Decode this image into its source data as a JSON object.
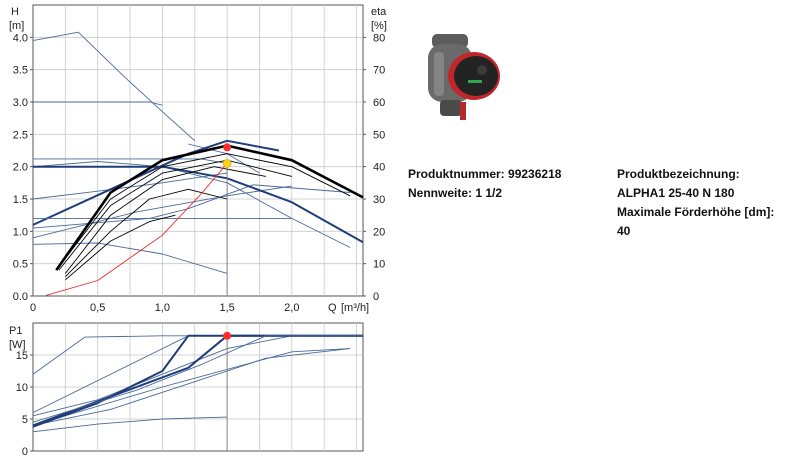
{
  "product": {
    "produktnummer_label": "Produktnummer:",
    "produktnummer": "99236218",
    "nennweite_label": "Nennweite:",
    "nennweite": "1 1/2",
    "bezeichnung_label": "Produktbezeichnung:",
    "bezeichnung": "ALPHA1 25-40 N 180",
    "foerderhoehe_label": "Maximale Förderhöhe [dm]:",
    "foerderhoehe": "40",
    "image": "circulator-pump-photo"
  },
  "colors": {
    "grid": "#c8c8c8",
    "frame": "#555555",
    "curve_thin": "#4a6a9a",
    "curve_bold": "#1f3d78",
    "curve_black": "#000000",
    "system_curve": "#e8312f",
    "op_point_red": "#ff2a2a",
    "op_point_yellow": "#ffd21a",
    "pump_body": "#555555",
    "pump_accent": "#c0262a"
  },
  "chart_data": [
    {
      "type": "line",
      "title": "",
      "ylabel": "H\n[m]",
      "y2label": "eta\n[%]",
      "xlabel": "Q [m³/h]",
      "xlim": [
        0,
        2.55
      ],
      "ylim": [
        0,
        4.5
      ],
      "y2lim": [
        0,
        90
      ],
      "x_ticks": [
        "0",
        "0,5",
        "1,0",
        "1,5",
        "2,0"
      ],
      "x_tick_values": [
        0,
        0.5,
        1.0,
        1.5,
        2.0
      ],
      "y_ticks": [
        "0.0",
        "0.5",
        "1.0",
        "1.5",
        "2.0",
        "2.5",
        "3.0",
        "3.5",
        "4.0"
      ],
      "y_tick_values": [
        0,
        0.5,
        1.0,
        1.5,
        2.0,
        2.5,
        3.0,
        3.5,
        4.0
      ],
      "y2_ticks": [
        "0",
        "10",
        "20",
        "30",
        "40",
        "50",
        "60",
        "70",
        "80"
      ],
      "y2_tick_values": [
        0,
        10,
        20,
        30,
        40,
        50,
        60,
        70,
        80
      ],
      "x_unit": "[m³/h]",
      "grid": true,
      "operating_point": {
        "x": 1.5,
        "y": 2.05,
        "eta": 46
      },
      "series": [
        {
          "role": "thin",
          "axis": "H",
          "x": [
            0,
            0.35,
            0.7,
            1.0,
            1.25
          ],
          "y": [
            3.95,
            4.08,
            3.4,
            2.85,
            2.4
          ]
        },
        {
          "role": "thin",
          "axis": "H",
          "x": [
            0,
            0.9,
            1.0
          ],
          "y": [
            3.0,
            3.0,
            2.95
          ]
        },
        {
          "role": "thin",
          "axis": "H",
          "x": [
            0,
            1.3,
            1.5
          ],
          "y": [
            2.12,
            2.12,
            2.05
          ]
        },
        {
          "role": "thin",
          "axis": "H",
          "x": [
            0,
            0.5,
            1.0,
            1.5,
            2.0,
            2.45
          ],
          "y": [
            2.0,
            2.08,
            2.0,
            1.75,
            1.2,
            0.75
          ]
        },
        {
          "role": "thin",
          "axis": "H",
          "x": [
            0,
            0.5,
            1.0,
            1.5
          ],
          "y": [
            0.8,
            0.82,
            0.65,
            0.35
          ]
        },
        {
          "role": "thin",
          "axis": "H",
          "x": [
            0,
            0.9,
            1.2,
            1.7,
            2.45
          ],
          "y": [
            1.05,
            1.2,
            1.35,
            1.72,
            1.6
          ]
        },
        {
          "role": "thin",
          "axis": "H",
          "x": [
            0,
            0.5,
            1.0,
            1.5
          ],
          "y": [
            1.5,
            1.62,
            1.75,
            1.9
          ]
        },
        {
          "role": "thin",
          "axis": "H",
          "x": [
            0,
            0.8,
            1.5,
            2.0
          ],
          "y": [
            0.9,
            1.3,
            1.55,
            1.7
          ]
        },
        {
          "role": "thin",
          "axis": "H",
          "x": [
            1.2,
            1.5,
            1.75
          ],
          "y": [
            2.35,
            2.2,
            1.9
          ]
        },
        {
          "role": "bold",
          "axis": "H",
          "x": [
            0,
            1.0,
            1.5,
            2.0,
            2.55
          ],
          "y": [
            2.0,
            2.0,
            1.82,
            1.45,
            0.83
          ]
        },
        {
          "role": "bold",
          "axis": "H",
          "x": [
            0,
            0.6,
            1.2,
            1.5,
            1.9
          ],
          "y": [
            1.1,
            1.65,
            2.2,
            2.4,
            2.25
          ]
        },
        {
          "role": "thin",
          "axis": "H",
          "x": [
            0,
            0.9,
            2.0
          ],
          "y": [
            1.2,
            1.2,
            1.2
          ]
        },
        {
          "role": "black_bold",
          "axis": "eta",
          "x": [
            0.18,
            0.6,
            1.0,
            1.5,
            2.0,
            2.55
          ],
          "y": [
            8,
            32,
            42,
            46.5,
            42,
            30.5
          ]
        },
        {
          "role": "black_thin",
          "axis": "eta",
          "x": [
            0.2,
            0.6,
            1.0,
            1.5,
            2.0,
            2.45
          ],
          "y": [
            9,
            30,
            40,
            44,
            40,
            31
          ]
        },
        {
          "role": "black_thin",
          "axis": "eta",
          "x": [
            0.2,
            0.6,
            1.0,
            1.5,
            2.0
          ],
          "y": [
            8,
            28,
            38,
            42,
            37
          ]
        },
        {
          "role": "black_thin",
          "axis": "eta",
          "x": [
            0.25,
            0.6,
            1.0,
            1.4,
            1.8
          ],
          "y": [
            7,
            25,
            36,
            40,
            37
          ]
        },
        {
          "role": "black_thin",
          "axis": "eta",
          "x": [
            0.25,
            0.6,
            0.9,
            1.2,
            1.5
          ],
          "y": [
            6,
            20,
            30,
            33,
            30
          ]
        },
        {
          "role": "black_thin",
          "axis": "eta",
          "x": [
            0.25,
            0.6,
            0.9,
            1.1
          ],
          "y": [
            5,
            17,
            23,
            25
          ]
        },
        {
          "role": "system",
          "axis": "H",
          "x": [
            0.1,
            0.5,
            1.0,
            1.3,
            1.5
          ],
          "y": [
            0.01,
            0.24,
            0.94,
            1.58,
            2.05
          ]
        }
      ]
    },
    {
      "type": "line",
      "title": "",
      "ylabel": "P1\n[W]",
      "xlim": [
        0,
        2.55
      ],
      "ylim": [
        0,
        20
      ],
      "y_ticks": [
        "0",
        "5",
        "10",
        "15"
      ],
      "y_tick_values": [
        0,
        5,
        10,
        15
      ],
      "grid": true,
      "operating_point": {
        "x": 1.5,
        "y": 18
      },
      "series": [
        {
          "role": "thin",
          "x": [
            0,
            0.4,
            1.0,
            1.5,
            2.55
          ],
          "y": [
            12,
            17.8,
            18,
            18,
            18
          ]
        },
        {
          "role": "thin",
          "x": [
            0,
            0.5,
            0.9,
            1.2
          ],
          "y": [
            6,
            11,
            15,
            18
          ]
        },
        {
          "role": "thin",
          "x": [
            0,
            0.5,
            1.0,
            1.5,
            2.0
          ],
          "y": [
            5.5,
            8,
            12,
            16,
            18
          ]
        },
        {
          "role": "thin",
          "x": [
            0,
            0.6,
            1.2,
            1.8,
            2.45
          ],
          "y": [
            4,
            6.5,
            10.5,
            14.5,
            16
          ]
        },
        {
          "role": "thin",
          "x": [
            0,
            1.0,
            2.0,
            2.45
          ],
          "y": [
            4,
            10,
            15.5,
            16
          ]
        },
        {
          "role": "thin",
          "x": [
            0,
            0.5,
            1.0,
            1.5
          ],
          "y": [
            3,
            4.2,
            5,
            5.3
          ]
        },
        {
          "role": "bold",
          "x": [
            0,
            0.5,
            1.0,
            1.2,
            2.55
          ],
          "y": [
            3.8,
            7.5,
            12.5,
            18,
            18
          ]
        },
        {
          "role": "bold",
          "x": [
            0,
            0.6,
            1.2,
            1.5,
            2.55
          ],
          "y": [
            4,
            8.5,
            13,
            18,
            18
          ]
        },
        {
          "role": "thin",
          "x": [
            0,
            0.8,
            1.3,
            1.8,
            2.55
          ],
          "y": [
            4.5,
            9.5,
            13.5,
            18,
            18
          ]
        }
      ]
    }
  ]
}
